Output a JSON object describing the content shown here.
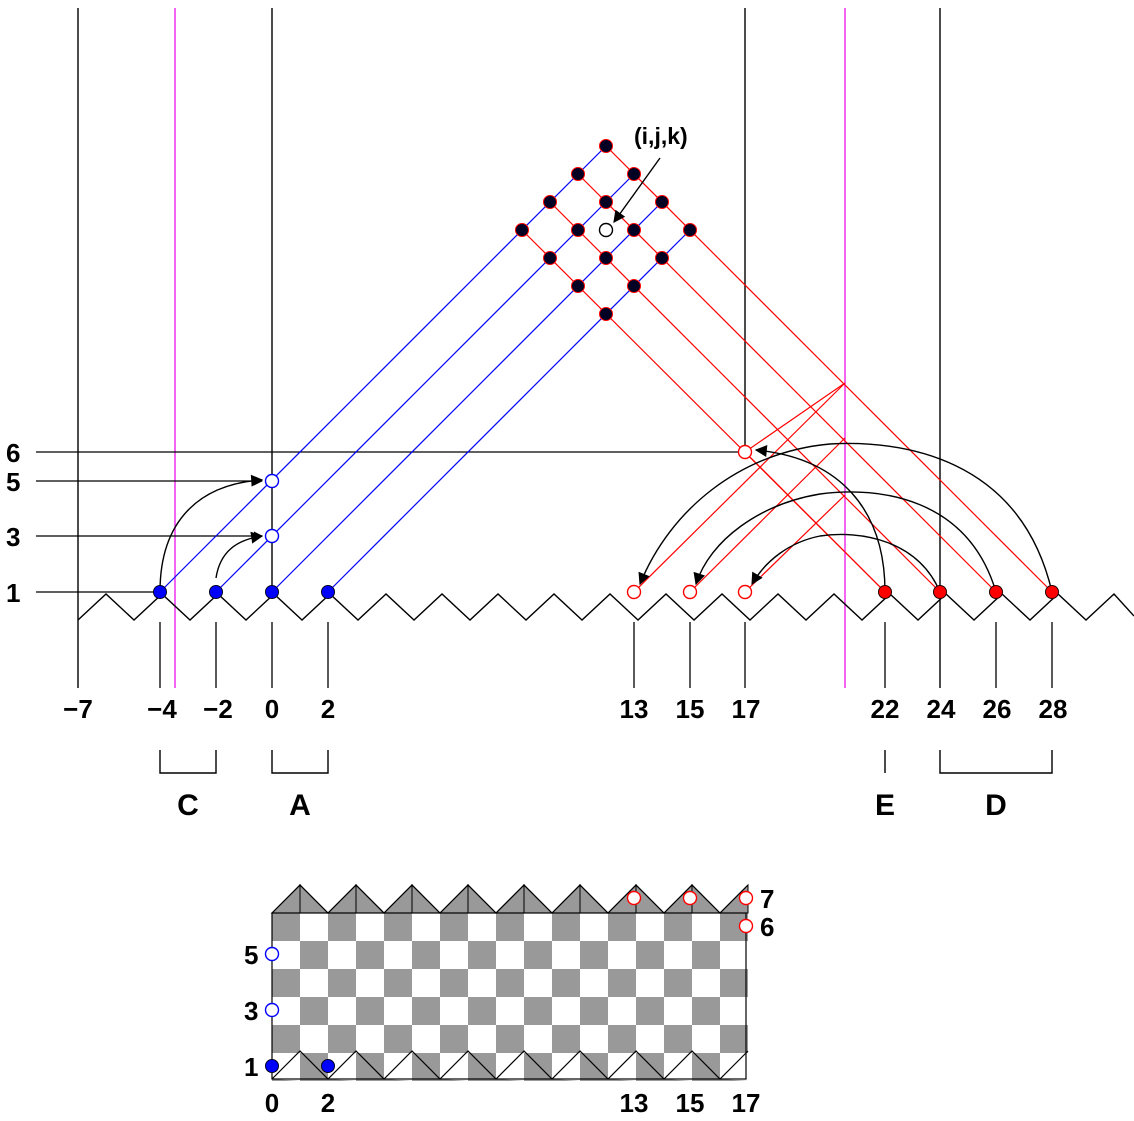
{
  "colors": {
    "blue": "#0000ff",
    "red": "#ff0000",
    "magenta": "#ee22ee",
    "black": "#000000",
    "gray": "#999999",
    "node": "#000022"
  },
  "diagram": {
    "x_tick_labels": [
      "−7",
      "−4",
      "−2",
      "0",
      "2",
      "13",
      "15",
      "17",
      "22",
      "24",
      "26",
      "28"
    ],
    "y_tick_labels": [
      "1",
      "3",
      "5",
      "6"
    ],
    "group_labels": {
      "C": "C",
      "A": "A",
      "E": "E",
      "D": "D"
    },
    "annotation": "(i,j,k)"
  },
  "board": {
    "x_labels": [
      "0",
      "2",
      "13",
      "15",
      "17"
    ],
    "y_labels": [
      "1",
      "3",
      "5",
      "6",
      "7"
    ]
  }
}
